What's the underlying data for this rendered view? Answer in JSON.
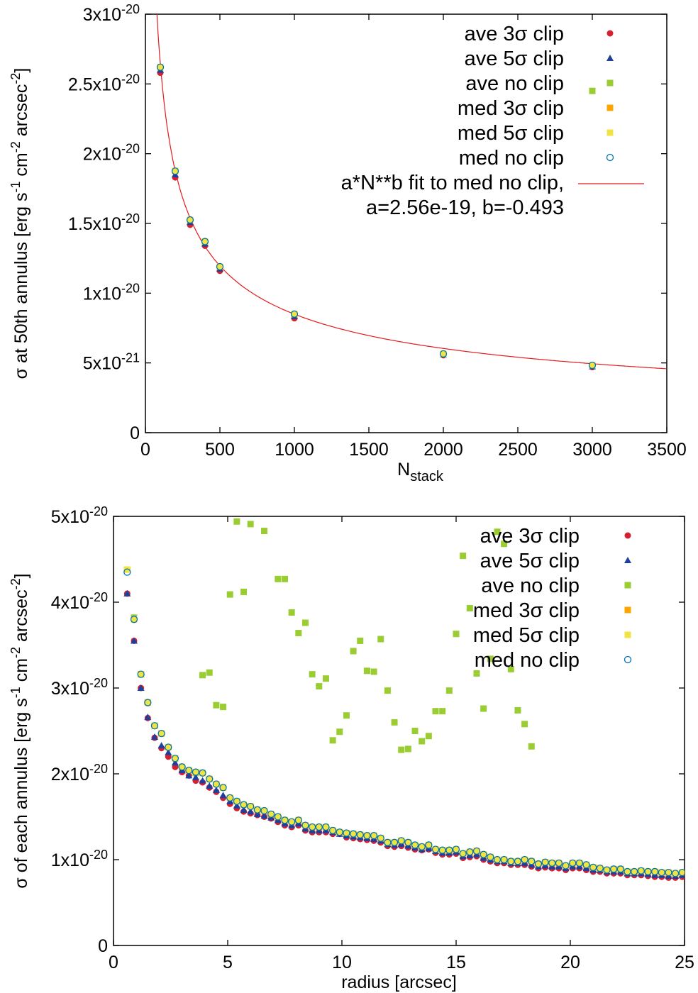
{
  "chart_data": [
    {
      "type": "scatter",
      "xlabel": "N",
      "xlabel_subscript": "stack",
      "ylabel": "σ at 50th annulus [erg s-1 cm-2 arcsec-2]",
      "ylabel_parts": [
        "σ at 50th annulus [erg s",
        "-1",
        " cm",
        "-2",
        " arcsec",
        "-2",
        "]"
      ],
      "xlim": [
        0,
        3500
      ],
      "ylim": [
        0,
        3e-20
      ],
      "xticks": [
        "0",
        "500",
        "1000",
        "1500",
        "2000",
        "2500",
        "3000",
        "3500"
      ],
      "yticks": [
        {
          "value": 0,
          "base": "0",
          "exp": ""
        },
        {
          "value": 5e-21,
          "base": "5x10",
          "exp": "-21"
        },
        {
          "value": 1e-20,
          "base": "1x10",
          "exp": "-20"
        },
        {
          "value": 1.5e-20,
          "base": "1.5x10",
          "exp": "-20"
        },
        {
          "value": 2e-20,
          "base": "2x10",
          "exp": "-20"
        },
        {
          "value": 2.5e-20,
          "base": "2.5x10",
          "exp": "-20"
        },
        {
          "value": 3e-20,
          "base": "3x10",
          "exp": "-20"
        }
      ],
      "x": [
        100,
        200,
        300,
        400,
        500,
        1000,
        2000,
        3000
      ],
      "series": [
        {
          "name": "ave 3σ clip",
          "marker": "circle",
          "color": "#d62030",
          "values": [
            2.58e-20,
            1.83e-20,
            1.49e-20,
            1.34e-20,
            1.16e-20,
            8.2e-21,
            5.55e-21,
            4.7e-21
          ]
        },
        {
          "name": "ave 5σ clip",
          "marker": "triangle",
          "color": "#1f3f9c",
          "values": [
            2.6e-20,
            1.85e-20,
            1.51e-20,
            1.355e-20,
            1.175e-20,
            8.35e-21,
            5.6e-21,
            4.75e-21
          ]
        },
        {
          "name": "ave no clip",
          "marker": "square",
          "color": "#9acd32",
          "values": [
            2.45e-20
          ]
        },
        {
          "name": "med 3σ clip",
          "marker": "square",
          "color": "#ffa500",
          "values": [
            2.62e-20,
            1.875e-20,
            1.525e-20,
            1.37e-20,
            1.19e-20,
            8.5e-21,
            5.65e-21,
            4.83e-21
          ]
        },
        {
          "name": "med 5σ clip",
          "marker": "square",
          "color": "#f0e442",
          "values": [
            2.62e-20,
            1.875e-20,
            1.525e-20,
            1.37e-20,
            1.19e-20,
            8.5e-21,
            5.65e-21,
            4.83e-21
          ]
        },
        {
          "name": "med no clip",
          "marker": "open-circle",
          "color": "#0072b2",
          "values": [
            2.62e-20,
            1.875e-20,
            1.525e-20,
            1.37e-20,
            1.19e-20,
            8.5e-21,
            5.65e-21,
            4.83e-21
          ]
        }
      ],
      "ave_no_clip_x": [
        3000
      ],
      "fit": {
        "name": "a*N**b fit to med no clip,",
        "label2": "a=2.56e-19, b=-0.493",
        "a": 2.56e-19,
        "b": -0.493,
        "color": "#e31a1c"
      },
      "legend": "top-right"
    },
    {
      "type": "scatter",
      "xlabel": "radius [arcsec]",
      "ylabel_parts": [
        "σ of each annulus [erg s",
        "-1",
        " cm",
        "-2",
        " arcsec",
        "-2",
        "]"
      ],
      "xlim": [
        0,
        25
      ],
      "ylim": [
        0,
        5e-20
      ],
      "xticks": [
        "0",
        "5",
        "10",
        "15",
        "20",
        "25"
      ],
      "yticks": [
        {
          "value": 0,
          "base": "0",
          "exp": ""
        },
        {
          "value": 1e-20,
          "base": "1x10",
          "exp": "-20"
        },
        {
          "value": 2e-20,
          "base": "2x10",
          "exp": "-20"
        },
        {
          "value": 3e-20,
          "base": "3x10",
          "exp": "-20"
        },
        {
          "value": 4e-20,
          "base": "4x10",
          "exp": "-20"
        },
        {
          "value": 5e-20,
          "base": "5x10",
          "exp": "-20"
        }
      ],
      "x": [
        0.6,
        0.9,
        1.2,
        1.5,
        1.8,
        2.1,
        2.4,
        2.7,
        3.0,
        3.3,
        3.6,
        3.9,
        4.2,
        4.5,
        4.8,
        5.1,
        5.4,
        5.7,
        6.0,
        6.3,
        6.6,
        6.9,
        7.2,
        7.5,
        7.8,
        8.1,
        8.4,
        8.7,
        9.0,
        9.3,
        9.6,
        9.9,
        10.2,
        10.5,
        10.8,
        11.1,
        11.4,
        11.7,
        12.0,
        12.3,
        12.6,
        12.9,
        13.2,
        13.5,
        13.8,
        14.1,
        14.4,
        14.7,
        15.0,
        15.3,
        15.6,
        15.9,
        16.2,
        16.5,
        16.8,
        17.1,
        17.4,
        17.7,
        18.0,
        18.3,
        18.6,
        18.9,
        19.2,
        19.5,
        19.8,
        20.1,
        20.4,
        20.7,
        21.0,
        21.3,
        21.6,
        21.9,
        22.2,
        22.5,
        22.8,
        23.1,
        23.4,
        23.7,
        24.0,
        24.3,
        24.6,
        24.9
      ],
      "series": [
        {
          "name": "ave 3σ clip",
          "marker": "circle",
          "color": "#d62030",
          "values": [
            4.1,
            3.55,
            3.0,
            2.65,
            2.42,
            2.3,
            2.2,
            2.08,
            2.02,
            1.98,
            1.92,
            1.9,
            1.84,
            1.79,
            1.72,
            1.65,
            1.6,
            1.56,
            1.54,
            1.52,
            1.5,
            1.48,
            1.44,
            1.4,
            1.38,
            1.4,
            1.34,
            1.32,
            1.32,
            1.32,
            1.3,
            1.3,
            1.26,
            1.25,
            1.24,
            1.23,
            1.22,
            1.2,
            1.16,
            1.15,
            1.16,
            1.14,
            1.12,
            1.11,
            1.12,
            1.08,
            1.06,
            1.06,
            1.07,
            1.02,
            1.03,
            1.04,
            1.0,
            0.98,
            0.96,
            0.96,
            0.94,
            0.94,
            0.94,
            0.92,
            0.9,
            0.91,
            0.9,
            0.9,
            0.88,
            0.9,
            0.9,
            0.88,
            0.86,
            0.86,
            0.84,
            0.84,
            0.84,
            0.82,
            0.82,
            0.82,
            0.81,
            0.8,
            0.8,
            0.79,
            0.79,
            0.8
          ]
        },
        {
          "name": "ave 5σ clip",
          "marker": "triangle",
          "color": "#1f3f9c",
          "values": [
            4.1,
            3.55,
            3.0,
            2.66,
            2.43,
            2.33,
            2.25,
            2.13,
            2.04,
            1.98,
            1.96,
            1.92,
            1.86,
            1.81,
            1.75,
            1.68,
            1.63,
            1.58,
            1.56,
            1.53,
            1.51,
            1.49,
            1.46,
            1.42,
            1.4,
            1.42,
            1.36,
            1.34,
            1.34,
            1.34,
            1.32,
            1.3,
            1.28,
            1.27,
            1.26,
            1.25,
            1.24,
            1.22,
            1.18,
            1.17,
            1.18,
            1.16,
            1.14,
            1.12,
            1.13,
            1.1,
            1.08,
            1.08,
            1.09,
            1.04,
            1.05,
            1.06,
            1.02,
            1.0,
            0.98,
            0.98,
            0.96,
            0.96,
            0.96,
            0.94,
            0.92,
            0.93,
            0.92,
            0.92,
            0.9,
            0.92,
            0.92,
            0.9,
            0.88,
            0.88,
            0.86,
            0.86,
            0.86,
            0.84,
            0.84,
            0.84,
            0.83,
            0.82,
            0.82,
            0.81,
            0.81,
            0.82
          ]
        },
        {
          "name": "ave no clip",
          "marker": "square",
          "color": "#9acd32",
          "values": [
            4.38,
            3.82,
            3.16,
            2.83,
            2.56,
            2.47,
            2.31,
            2.18,
            2.08,
            2.04,
            2.01,
            3.15,
            3.18,
            2.8,
            2.78,
            4.09,
            4.94,
            4.12,
            4.91,
            null,
            4.83,
            null,
            4.27,
            4.27,
            3.88,
            3.64,
            3.76,
            3.16,
            3.02,
            3.11,
            2.39,
            2.49,
            2.68,
            3.43,
            3.55,
            3.2,
            3.19,
            3.57,
            2.97,
            2.6,
            2.28,
            2.29,
            2.5,
            2.38,
            2.44,
            2.73,
            2.73,
            2.97,
            3.63,
            4.54,
            3.93,
            3.17,
            2.76,
            3.34,
            4.82,
            4.68,
            3.22,
            2.74,
            2.58,
            2.32
          ]
        },
        {
          "name": "med 3σ clip",
          "marker": "square",
          "color": "#ffa500",
          "values": [
            4.38,
            3.8,
            3.16,
            2.83,
            2.56,
            2.47,
            2.31,
            2.18,
            2.08,
            2.04,
            2.02,
            2.01,
            1.94,
            1.88,
            1.84,
            1.72,
            1.68,
            1.64,
            1.62,
            1.58,
            1.57,
            1.53,
            1.5,
            1.46,
            1.44,
            1.46,
            1.4,
            1.38,
            1.38,
            1.38,
            1.34,
            1.32,
            1.31,
            1.3,
            1.29,
            1.28,
            1.28,
            1.25,
            1.2,
            1.2,
            1.22,
            1.2,
            1.17,
            1.15,
            1.17,
            1.12,
            1.11,
            1.11,
            1.12,
            1.07,
            1.09,
            1.1,
            1.06,
            1.03,
            1.0,
            1.0,
            0.98,
            0.98,
            1.0,
            0.98,
            0.95,
            0.97,
            0.96,
            0.96,
            0.93,
            0.96,
            0.96,
            0.94,
            0.91,
            0.9,
            0.88,
            0.89,
            0.89,
            0.86,
            0.86,
            0.87,
            0.86,
            0.86,
            0.85,
            0.85,
            0.84,
            0.85
          ]
        },
        {
          "name": "med 5σ clip",
          "marker": "square",
          "color": "#f0e442",
          "values": [
            4.38,
            3.8,
            3.16,
            2.83,
            2.56,
            2.47,
            2.31,
            2.18,
            2.08,
            2.04,
            2.02,
            2.01,
            1.94,
            1.88,
            1.84,
            1.72,
            1.68,
            1.64,
            1.62,
            1.58,
            1.57,
            1.53,
            1.5,
            1.46,
            1.44,
            1.46,
            1.4,
            1.38,
            1.38,
            1.38,
            1.34,
            1.32,
            1.31,
            1.3,
            1.29,
            1.28,
            1.28,
            1.25,
            1.2,
            1.2,
            1.22,
            1.2,
            1.17,
            1.15,
            1.17,
            1.12,
            1.11,
            1.11,
            1.12,
            1.07,
            1.09,
            1.1,
            1.06,
            1.03,
            1.0,
            1.0,
            0.98,
            0.98,
            1.0,
            0.98,
            0.95,
            0.97,
            0.96,
            0.96,
            0.93,
            0.96,
            0.96,
            0.94,
            0.91,
            0.9,
            0.88,
            0.89,
            0.89,
            0.86,
            0.86,
            0.87,
            0.86,
            0.86,
            0.85,
            0.85,
            0.84,
            0.85
          ]
        },
        {
          "name": "med no clip",
          "marker": "open-circle",
          "color": "#0072b2",
          "values": [
            4.35,
            3.8,
            3.16,
            2.83,
            2.56,
            2.47,
            2.31,
            2.18,
            2.08,
            2.04,
            2.02,
            2.01,
            1.94,
            1.88,
            1.84,
            1.72,
            1.68,
            1.64,
            1.62,
            1.58,
            1.57,
            1.53,
            1.5,
            1.46,
            1.44,
            1.46,
            1.4,
            1.38,
            1.38,
            1.38,
            1.34,
            1.32,
            1.31,
            1.3,
            1.29,
            1.28,
            1.28,
            1.25,
            1.2,
            1.2,
            1.22,
            1.2,
            1.17,
            1.15,
            1.17,
            1.12,
            1.11,
            1.11,
            1.12,
            1.07,
            1.09,
            1.1,
            1.06,
            1.03,
            1.0,
            1.0,
            0.98,
            0.98,
            1.0,
            0.98,
            0.95,
            0.97,
            0.96,
            0.96,
            0.93,
            0.96,
            0.96,
            0.94,
            0.91,
            0.9,
            0.88,
            0.89,
            0.89,
            0.86,
            0.86,
            0.87,
            0.86,
            0.86,
            0.85,
            0.85,
            0.84,
            0.85
          ]
        }
      ],
      "ave_no_clip_x": [
        0.6,
        0.9,
        1.2,
        1.5,
        1.8,
        2.1,
        2.4,
        2.7,
        3.0,
        3.3,
        3.6,
        3.9,
        4.2,
        4.5,
        4.8,
        5.1,
        5.4,
        5.7,
        6.0,
        6.3,
        6.6,
        6.9,
        7.2,
        7.5,
        7.8,
        8.1,
        8.4,
        8.7,
        9.0,
        9.3,
        9.6,
        9.9,
        10.2,
        10.5,
        10.8,
        11.1,
        11.4,
        11.7,
        12.0,
        12.3,
        12.6,
        12.9,
        13.2,
        13.5,
        13.8,
        14.1,
        14.4,
        14.7,
        15.0,
        15.3,
        15.6,
        15.9,
        16.2,
        16.5,
        16.8,
        17.1,
        17.4,
        17.7,
        18.0,
        18.3
      ],
      "value_scale": 1e-20,
      "legend": "top-right"
    }
  ]
}
